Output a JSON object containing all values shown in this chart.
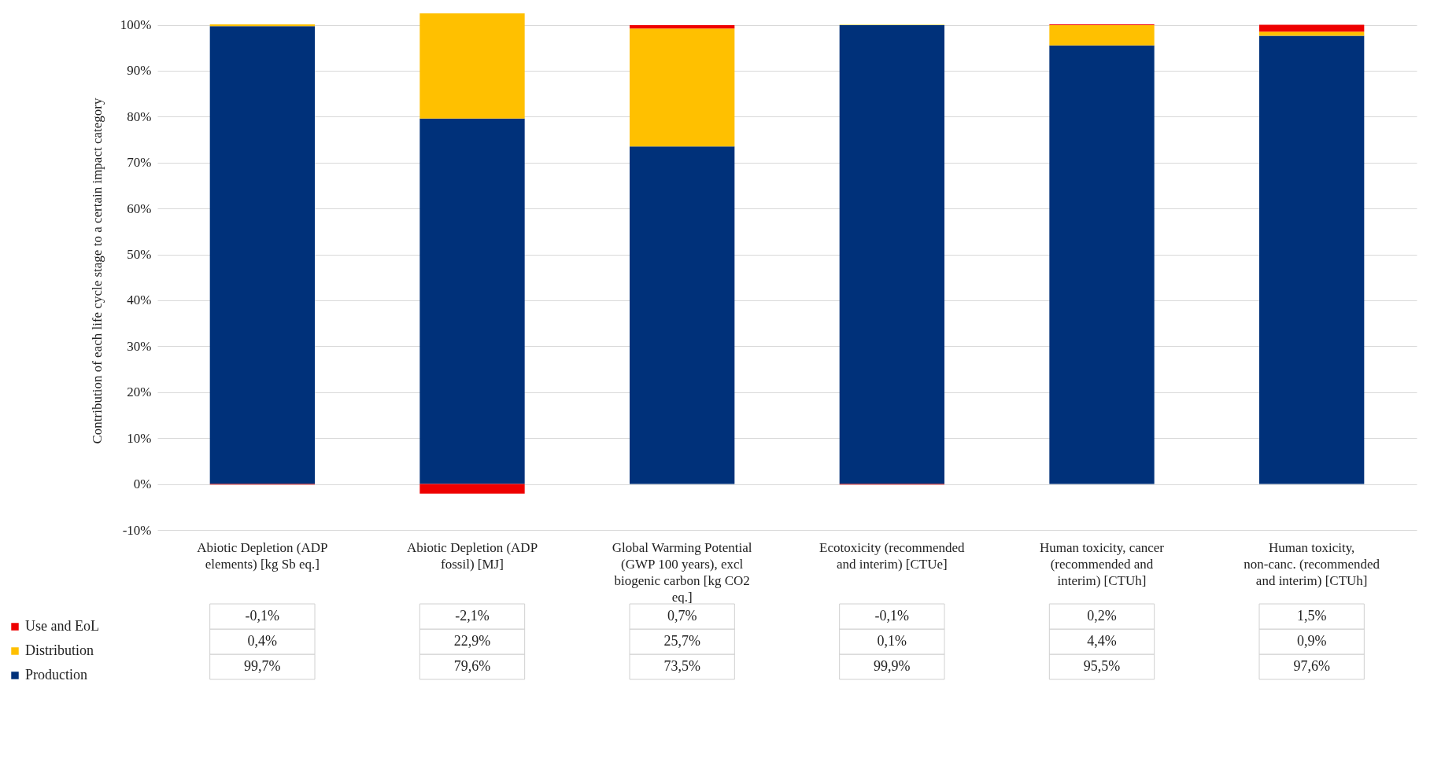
{
  "chart_data": {
    "type": "bar",
    "stacked": true,
    "ylabel": "Contribution of each life cycle stage to a certain impact category",
    "categories": [
      "Abiotic Depletion (ADP elements) [kg Sb eq.]",
      "Abiotic Depletion (ADP fossil) [MJ]",
      "Global Warming Potential (GWP 100 years), excl biogenic carbon [kg CO2 eq.]",
      "Ecotoxicity (recommended and interim) [CTUe]",
      "Human toxicity, cancer (recommended and interim) [CTUh]",
      "Human toxicity, non-canc. (recommended and interim) [CTUh]"
    ],
    "series": [
      {
        "name": "Production",
        "color": "#00317a",
        "values": [
          99.7,
          79.6,
          73.5,
          99.9,
          95.5,
          97.6
        ],
        "value_labels": [
          "99,7%",
          "79,6%",
          "73,5%",
          "99,9%",
          "95,5%",
          "97,6%"
        ]
      },
      {
        "name": "Distribution",
        "color": "#ffc000",
        "values": [
          0.4,
          22.9,
          25.7,
          0.1,
          4.4,
          0.9
        ],
        "value_labels": [
          "0,4%",
          "22,9%",
          "25,7%",
          "0,1%",
          "4,4%",
          "0,9%"
        ]
      },
      {
        "name": "Use and EoL",
        "color": "#ee0000",
        "values": [
          -0.1,
          -2.1,
          0.7,
          -0.1,
          0.2,
          1.5
        ],
        "value_labels": [
          "-0,1%",
          "-2,1%",
          "0,7%",
          "-0,1%",
          "0,2%",
          "1,5%"
        ]
      }
    ],
    "ylim": [
      -10,
      103
    ],
    "yticks": [
      {
        "value": -10,
        "label": "-10%"
      },
      {
        "value": 0,
        "label": "0%"
      },
      {
        "value": 10,
        "label": "10%"
      },
      {
        "value": 20,
        "label": "20%"
      },
      {
        "value": 30,
        "label": "30%"
      },
      {
        "value": 40,
        "label": "40%"
      },
      {
        "value": 50,
        "label": "50%"
      },
      {
        "value": 60,
        "label": "60%"
      },
      {
        "value": 70,
        "label": "70%"
      },
      {
        "value": 80,
        "label": "80%"
      },
      {
        "value": 90,
        "label": "90%"
      },
      {
        "value": 100,
        "label": "100%"
      }
    ],
    "grid": "y",
    "legend": "bottom left"
  }
}
